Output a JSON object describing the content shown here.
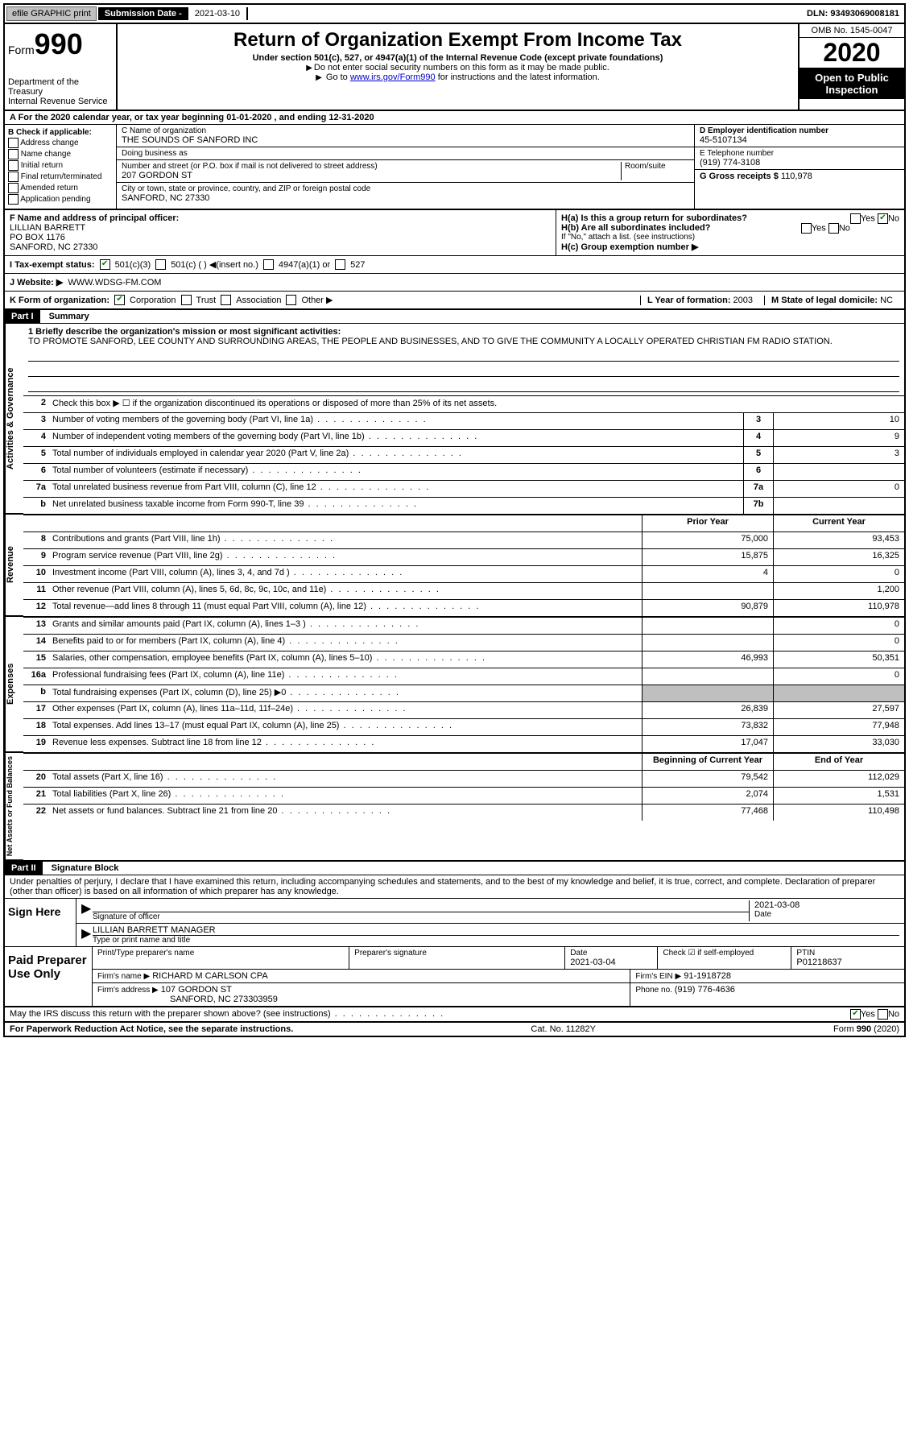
{
  "topbar": {
    "efile_label": "efile GRAPHIC print",
    "submission_label": "Submission Date - ",
    "submission_date": "2021-03-10",
    "dln_label": "DLN: ",
    "dln": "93493069008181"
  },
  "header": {
    "form_label": "Form",
    "form_num": "990",
    "dept": "Department of the Treasury",
    "irs": "Internal Revenue Service",
    "title": "Return of Organization Exempt From Income Tax",
    "subtitle": "Under section 501(c), 527, or 4947(a)(1) of the Internal Revenue Code (except private foundations)",
    "note1": "Do not enter social security numbers on this form as it may be made public.",
    "note2_prefix": "Go to ",
    "note2_link": "www.irs.gov/Form990",
    "note2_suffix": " for instructions and the latest information.",
    "omb": "OMB No. 1545-0047",
    "year": "2020",
    "open": "Open to Public Inspection"
  },
  "row_a": "A For the 2020 calendar year, or tax year beginning 01-01-2020    , and ending 12-31-2020",
  "box_b": {
    "title": "B Check if applicable:",
    "opts": [
      "Address change",
      "Name change",
      "Initial return",
      "Final return/terminated",
      "Amended return",
      "Application pending"
    ]
  },
  "box_c": {
    "name_label": "C Name of organization",
    "name": "THE SOUNDS OF SANFORD INC",
    "dba_label": "Doing business as",
    "dba": "",
    "street_label": "Number and street (or P.O. box if mail is not delivered to street address)",
    "room_label": "Room/suite",
    "street": "207 GORDON ST",
    "city_label": "City or town, state or province, country, and ZIP or foreign postal code",
    "city": "SANFORD, NC  27330"
  },
  "box_d": {
    "ein_label": "D Employer identification number",
    "ein": "45-5107134"
  },
  "box_e": {
    "tel_label": "E Telephone number",
    "tel": "(919) 774-3108"
  },
  "box_g": {
    "label": "G Gross receipts $ ",
    "val": "110,978"
  },
  "box_f": {
    "label": "F  Name and address of principal officer:",
    "name": "LILLIAN BARRETT",
    "addr1": "PO BOX 1176",
    "addr2": "SANFORD, NC  27330"
  },
  "box_h": {
    "ha": "H(a)  Is this a group return for subordinates?",
    "hb": "H(b)  Are all subordinates included?",
    "hb_note": "If \"No,\" attach a list. (see instructions)",
    "hc": "H(c)  Group exemption number ▶",
    "yes": "Yes",
    "no": "No"
  },
  "tax_exempt": {
    "label": "I  Tax-exempt status:",
    "c3": "501(c)(3)",
    "c": "501(c) (  ) ◀(insert no.)",
    "a1": "4947(a)(1) or",
    "s527": "527"
  },
  "website": {
    "label": "J  Website: ▶",
    "val": "WWW.WDSG-FM.COM"
  },
  "row_k": {
    "label": "K Form of organization:",
    "corp": "Corporation",
    "trust": "Trust",
    "assoc": "Association",
    "other": "Other ▶"
  },
  "row_l": {
    "label": "L Year of formation: ",
    "val": "2003"
  },
  "row_m": {
    "label": "M State of legal domicile: ",
    "val": "NC"
  },
  "part1": {
    "header": "Part I",
    "title": "Summary",
    "line1_label": "1  Briefly describe the organization's mission or most significant activities:",
    "mission": "TO PROMOTE SANFORD, LEE COUNTY AND SURROUNDING AREAS, THE PEOPLE AND BUSINESSES, AND TO GIVE THE COMMUNITY A LOCALLY OPERATED CHRISTIAN FM RADIO STATION.",
    "line2": "Check this box ▶ ☐  if the organization discontinued its operations or disposed of more than 25% of its net assets.",
    "sections": {
      "gov": "Activities & Governance",
      "rev": "Revenue",
      "exp": "Expenses",
      "net": "Net Assets or Fund Balances"
    },
    "gov_lines": [
      {
        "n": "3",
        "d": "Number of voting members of the governing body (Part VI, line 1a)",
        "box": "3",
        "v": "10"
      },
      {
        "n": "4",
        "d": "Number of independent voting members of the governing body (Part VI, line 1b)",
        "box": "4",
        "v": "9"
      },
      {
        "n": "5",
        "d": "Total number of individuals employed in calendar year 2020 (Part V, line 2a)",
        "box": "5",
        "v": "3"
      },
      {
        "n": "6",
        "d": "Total number of volunteers (estimate if necessary)",
        "box": "6",
        "v": ""
      },
      {
        "n": "7a",
        "d": "Total unrelated business revenue from Part VIII, column (C), line 12",
        "box": "7a",
        "v": "0"
      },
      {
        "n": "b",
        "d": "Net unrelated business taxable income from Form 990-T, line 39",
        "box": "7b",
        "v": ""
      }
    ],
    "prior_label": "Prior Year",
    "current_label": "Current Year",
    "rev_lines": [
      {
        "n": "8",
        "d": "Contributions and grants (Part VIII, line 1h)",
        "p": "75,000",
        "c": "93,453"
      },
      {
        "n": "9",
        "d": "Program service revenue (Part VIII, line 2g)",
        "p": "15,875",
        "c": "16,325"
      },
      {
        "n": "10",
        "d": "Investment income (Part VIII, column (A), lines 3, 4, and 7d )",
        "p": "4",
        "c": "0"
      },
      {
        "n": "11",
        "d": "Other revenue (Part VIII, column (A), lines 5, 6d, 8c, 9c, 10c, and 11e)",
        "p": "",
        "c": "1,200"
      },
      {
        "n": "12",
        "d": "Total revenue—add lines 8 through 11 (must equal Part VIII, column (A), line 12)",
        "p": "90,879",
        "c": "110,978"
      }
    ],
    "exp_lines": [
      {
        "n": "13",
        "d": "Grants and similar amounts paid (Part IX, column (A), lines 1–3 )",
        "p": "",
        "c": "0"
      },
      {
        "n": "14",
        "d": "Benefits paid to or for members (Part IX, column (A), line 4)",
        "p": "",
        "c": "0"
      },
      {
        "n": "15",
        "d": "Salaries, other compensation, employee benefits (Part IX, column (A), lines 5–10)",
        "p": "46,993",
        "c": "50,351"
      },
      {
        "n": "16a",
        "d": "Professional fundraising fees (Part IX, column (A), line 11e)",
        "p": "",
        "c": "0"
      },
      {
        "n": "b",
        "d": "Total fundraising expenses (Part IX, column (D), line 25) ▶0",
        "p": "shaded",
        "c": "shaded"
      },
      {
        "n": "17",
        "d": "Other expenses (Part IX, column (A), lines 11a–11d, 11f–24e)",
        "p": "26,839",
        "c": "27,597"
      },
      {
        "n": "18",
        "d": "Total expenses. Add lines 13–17 (must equal Part IX, column (A), line 25)",
        "p": "73,832",
        "c": "77,948"
      },
      {
        "n": "19",
        "d": "Revenue less expenses. Subtract line 18 from line 12",
        "p": "17,047",
        "c": "33,030"
      }
    ],
    "boy_label": "Beginning of Current Year",
    "eoy_label": "End of Year",
    "net_lines": [
      {
        "n": "20",
        "d": "Total assets (Part X, line 16)",
        "p": "79,542",
        "c": "112,029"
      },
      {
        "n": "21",
        "d": "Total liabilities (Part X, line 26)",
        "p": "2,074",
        "c": "1,531"
      },
      {
        "n": "22",
        "d": "Net assets or fund balances. Subtract line 21 from line 20",
        "p": "77,468",
        "c": "110,498"
      }
    ]
  },
  "part2": {
    "header": "Part II",
    "title": "Signature Block",
    "declaration": "Under penalties of perjury, I declare that I have examined this return, including accompanying schedules and statements, and to the best of my knowledge and belief, it is true, correct, and complete. Declaration of preparer (other than officer) is based on all information of which preparer has any knowledge.",
    "sign_here": "Sign Here",
    "sig_officer": "Signature of officer",
    "sig_date": "2021-03-08",
    "date_label": "Date",
    "officer_name": "LILLIAN BARRETT MANAGER",
    "type_label": "Type or print name and title"
  },
  "paid": {
    "label": "Paid Preparer Use Only",
    "print_name_label": "Print/Type preparer's name",
    "prep_sig_label": "Preparer's signature",
    "date_label": "Date",
    "date": "2021-03-04",
    "check_label": "Check ☑ if self-employed",
    "ptin_label": "PTIN",
    "ptin": "P01218637",
    "firm_name_label": "Firm's name    ▶",
    "firm_name": "RICHARD M CARLSON CPA",
    "firm_ein_label": "Firm's EIN ▶",
    "firm_ein": "91-1918728",
    "firm_addr_label": "Firm's address ▶",
    "firm_addr1": "107 GORDON ST",
    "firm_addr2": "SANFORD, NC  273303959",
    "phone_label": "Phone no. ",
    "phone": "(919) 776-4636"
  },
  "discuss": {
    "q": "May the IRS discuss this return with the preparer shown above? (see instructions)",
    "yes": "Yes",
    "no": "No"
  },
  "footer": {
    "pra": "For Paperwork Reduction Act Notice, see the separate instructions.",
    "cat": "Cat. No. 11282Y",
    "form": "Form 990 (2020)"
  }
}
